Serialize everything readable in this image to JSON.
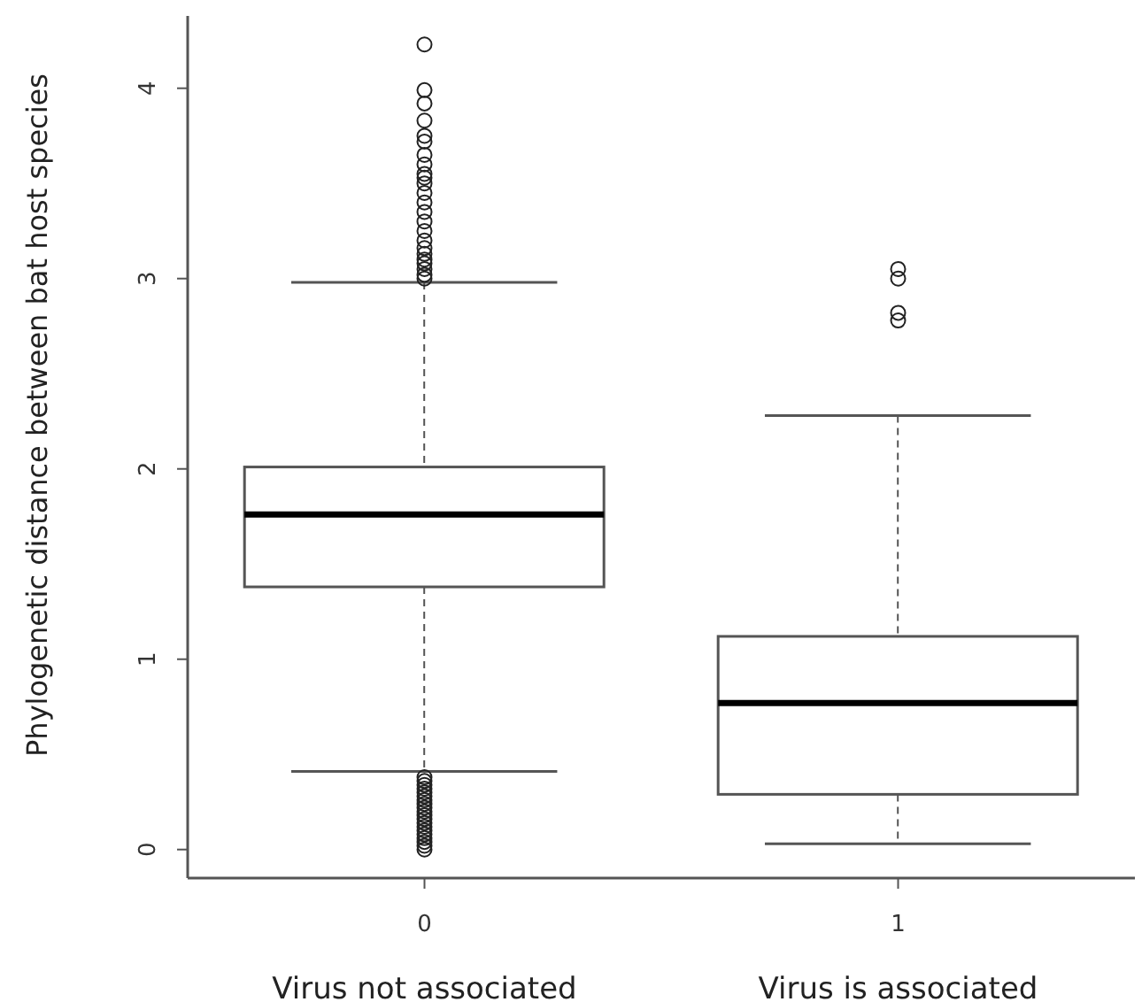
{
  "chart_data": {
    "type": "box",
    "ylabel": "Phylogenetic distance between bat host species",
    "categories": [
      "0",
      "1"
    ],
    "boxes": [
      {
        "low": 0.41,
        "q1": 1.38,
        "median": 1.76,
        "q3": 2.01,
        "high": 2.98,
        "outliers": [
          3.0,
          3.02,
          3.05,
          3.08,
          3.1,
          3.13,
          3.16,
          3.2,
          3.25,
          3.3,
          3.35,
          3.4,
          3.45,
          3.5,
          3.53,
          3.55,
          3.6,
          3.65,
          3.72,
          3.75,
          3.83,
          3.92,
          3.99,
          4.23,
          0.0,
          0.02,
          0.04,
          0.06,
          0.08,
          0.1,
          0.12,
          0.14,
          0.16,
          0.18,
          0.2,
          0.22,
          0.24,
          0.26,
          0.28,
          0.3,
          0.32,
          0.34,
          0.36,
          0.38
        ]
      },
      {
        "low": 0.03,
        "q1": 0.29,
        "median": 0.77,
        "q3": 1.12,
        "high": 2.28,
        "outliers": [
          2.78,
          2.82,
          3.0,
          3.05
        ]
      }
    ],
    "ylim": [
      -0.15,
      4.38
    ],
    "yticks": [
      0,
      1,
      2,
      3,
      4
    ],
    "annotations": [
      "Virus not associated",
      "Virus is associated"
    ],
    "grid": false,
    "legend": false
  }
}
